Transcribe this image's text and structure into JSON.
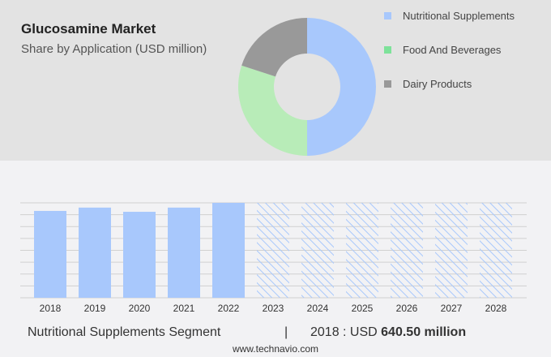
{
  "header": {
    "title": "Glucosamine Market",
    "subtitle": "Share by Application (USD million)"
  },
  "chart_data": [
    {
      "type": "pie",
      "donut": true,
      "labels": [
        "Nutritional Supplements",
        "Food And Beverages",
        "Dairy Products"
      ],
      "values": [
        50,
        30,
        20
      ],
      "colors": [
        "#a8c8fc",
        "#b8ecb8",
        "#999999"
      ],
      "legend_colors": [
        "#a8c8fc",
        "#7ee29a",
        "#999999"
      ],
      "legend": "right"
    },
    {
      "type": "bar",
      "categories": [
        "2018",
        "2019",
        "2020",
        "2021",
        "2022",
        "2023",
        "2024",
        "2025",
        "2026",
        "2027",
        "2028"
      ],
      "values": [
        640.5,
        665,
        634,
        665,
        700,
        null,
        null,
        null,
        null,
        null,
        null
      ],
      "forecast": [
        "2023",
        "2024",
        "2025",
        "2026",
        "2027",
        "2028"
      ],
      "ylim": [
        0,
        700
      ],
      "grid": true,
      "color": "#a8c8fc"
    }
  ],
  "footer": {
    "segment": "Nutritional Supplements Segment",
    "separator": "|",
    "year_label": "2018 : USD ",
    "value": "640.50 million",
    "site": "www.technavio.com"
  }
}
